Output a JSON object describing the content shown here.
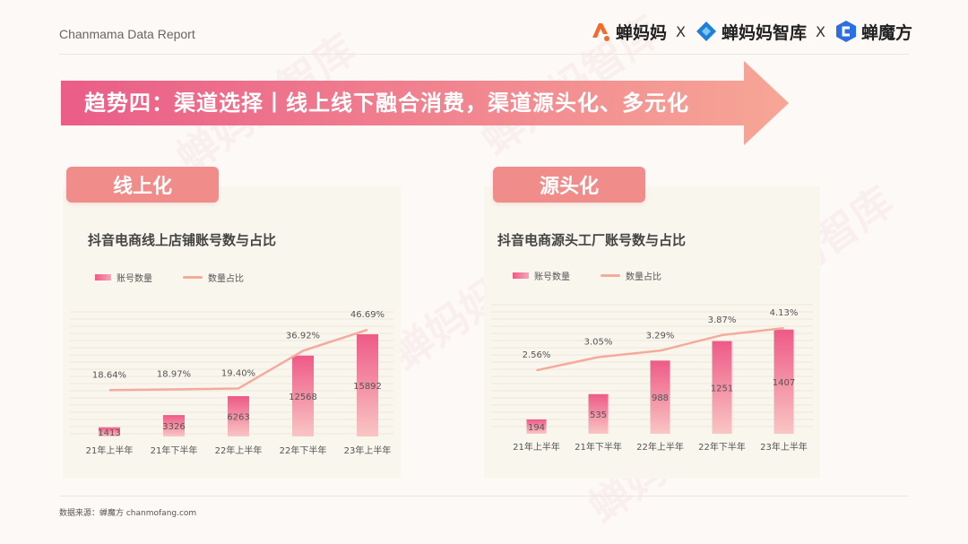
{
  "header": {
    "report_title": "Chanmama Data Report",
    "logos": [
      {
        "name": "蝉妈妈",
        "icon": "chanmama-logo-icon",
        "color": "#f26a2c"
      },
      {
        "name": "蝉妈妈智库",
        "icon": "chanmama-zhiku-logo-icon",
        "color": "#1f7fd6"
      },
      {
        "name": "蝉魔方",
        "icon": "chanmofang-logo-icon",
        "color": "#2d6fe0"
      }
    ],
    "separator": "X"
  },
  "banner": {
    "text": "趋势四：渠道选择丨线上线下融合消费，渠道源头化、多元化"
  },
  "panels": [
    {
      "tag": "线上化",
      "chart_title": "抖音电商线上店铺账号数与占比",
      "legend_bar": "账号数量",
      "legend_line": "数量占比"
    },
    {
      "tag": "源头化",
      "chart_title": "抖音电商源头工厂账号数与占比",
      "legend_bar": "账号数量",
      "legend_line": "数量占比"
    }
  ],
  "chart_data": [
    {
      "type": "bar",
      "title": "抖音电商线上店铺账号数与占比",
      "categories": [
        "21年上半年",
        "21年下半年",
        "22年上半年",
        "22年下半年",
        "23年上半年"
      ],
      "series": [
        {
          "name": "账号数量",
          "type": "bar",
          "values": [
            1413,
            3326,
            6263,
            12568,
            15892
          ],
          "labels": [
            "1413",
            "3326",
            "6263",
            "12568",
            "15892"
          ]
        },
        {
          "name": "数量占比",
          "type": "line",
          "values": [
            18.64,
            18.97,
            19.4,
            36.92,
            46.69
          ],
          "labels": [
            "18.64%",
            "18.97%",
            "19.40%",
            "36.92%",
            "46.69%"
          ]
        }
      ],
      "bar_max": 17000,
      "line_range": [
        0,
        50
      ],
      "legend": "top-left"
    },
    {
      "type": "bar",
      "title": "抖音电商源头工厂账号数与占比",
      "categories": [
        "21年上半年",
        "21年下半年",
        "22年上半年",
        "22年下半年",
        "23年上半年"
      ],
      "series": [
        {
          "name": "账号数量",
          "type": "bar",
          "values": [
            194,
            535,
            988,
            1251,
            1407
          ],
          "labels": [
            "194",
            "535",
            "988",
            "1251",
            "1407"
          ]
        },
        {
          "name": "数量占比",
          "type": "line",
          "values": [
            2.56,
            3.05,
            3.29,
            3.87,
            4.13
          ],
          "labels": [
            "2.56%",
            "3.05%",
            "3.29%",
            "3.87%",
            "4.13%"
          ]
        }
      ],
      "bar_max": 1500,
      "line_range": [
        0,
        4.5
      ],
      "legend": "top-left"
    }
  ],
  "footer": {
    "source": "数据来源：蝉魔方 chanmofang.com"
  },
  "watermark": "蝉妈妈智库",
  "colors": {
    "bar_top": "#ee5a87",
    "bar_bottom": "#f9c6c4",
    "line": "#f5ab9c",
    "banner_start": "#ea5d88",
    "banner_end": "#f7a696",
    "tag": "#f08c8a",
    "panel": "#f9f6ee"
  }
}
